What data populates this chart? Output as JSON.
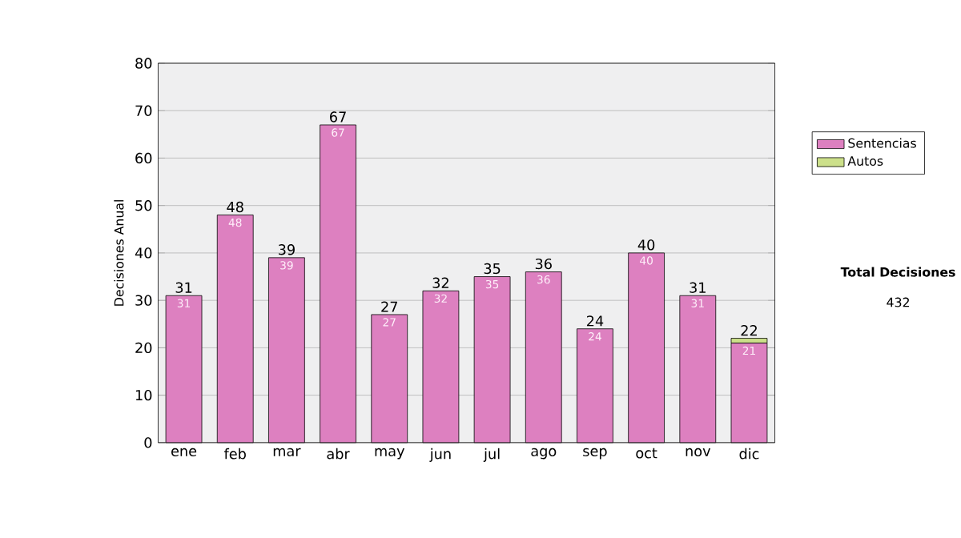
{
  "chart_data": {
    "type": "bar",
    "stacked": true,
    "categories": [
      "ene",
      "feb",
      "mar",
      "abr",
      "may",
      "jun",
      "jul",
      "ago",
      "sep",
      "oct",
      "nov",
      "dic"
    ],
    "series": [
      {
        "name": "Sentencias",
        "color": "#dd80c0",
        "values": [
          31,
          48,
          39,
          67,
          27,
          32,
          35,
          36,
          24,
          40,
          31,
          21
        ],
        "value_labels": [
          "31",
          "48",
          "39",
          "67",
          "27",
          "32",
          "35",
          "36",
          "24",
          "40",
          "31",
          "21"
        ]
      },
      {
        "name": "Autos",
        "color": "#cce08a",
        "values": [
          0,
          0,
          0,
          0,
          0,
          0,
          0,
          0,
          0,
          0,
          0,
          1
        ]
      }
    ],
    "totals": [
      "31",
      "48",
      "39",
      "67",
      "27",
      "32",
      "35",
      "36",
      "24",
      "40",
      "31",
      "22"
    ],
    "ylabel": "Decisiones Anual",
    "ylim": [
      0,
      80
    ],
    "yticks": [
      0,
      10,
      20,
      30,
      40,
      50,
      60,
      70,
      80
    ],
    "grid": "y",
    "legend": "right",
    "annotations": [
      "**Total Decisiones**",
      "432"
    ]
  }
}
